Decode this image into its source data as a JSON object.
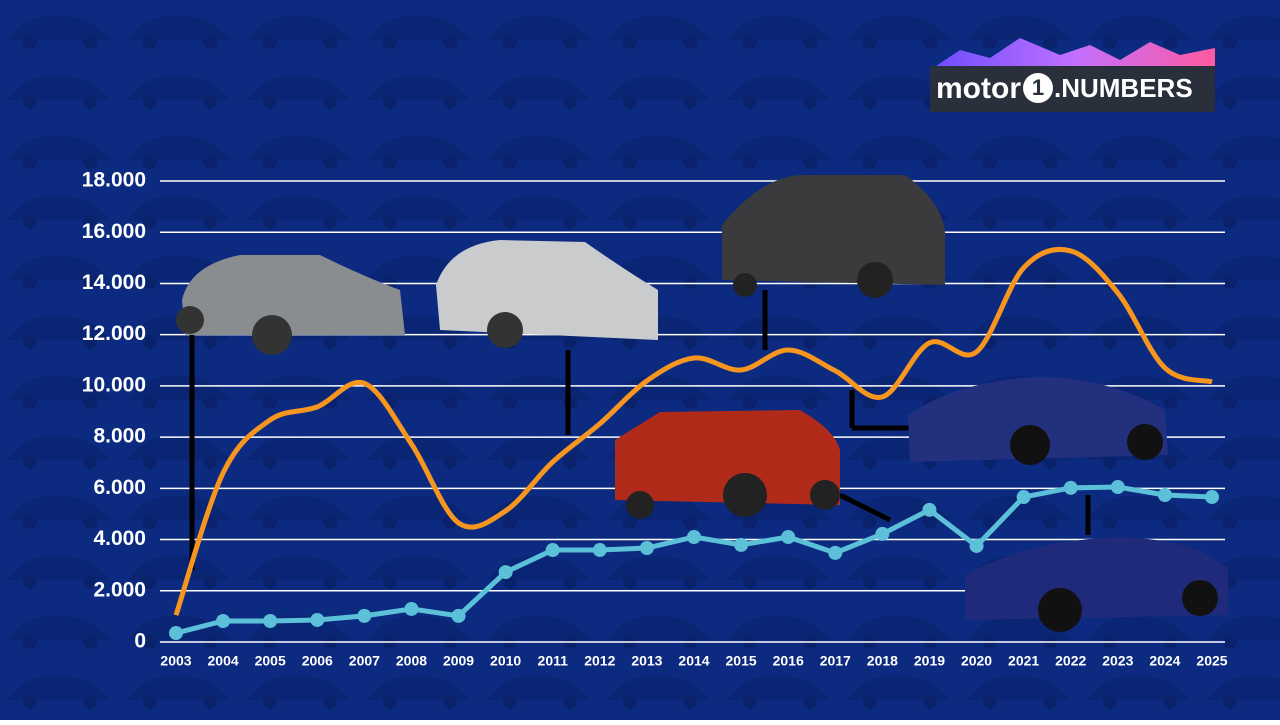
{
  "logo": {
    "brand": "motor",
    "mark": "1",
    "product": ".NUMBERS"
  },
  "chart_data": {
    "type": "line",
    "x": [
      2003,
      2004,
      2005,
      2006,
      2007,
      2008,
      2009,
      2010,
      2011,
      2012,
      2013,
      2014,
      2015,
      2016,
      2017,
      2018,
      2019,
      2020,
      2021,
      2022,
      2023,
      2024,
      2025
    ],
    "xlim": [
      2003,
      2025
    ],
    "xticks": [
      2003,
      2004,
      2005,
      2006,
      2007,
      2008,
      2009,
      2010,
      2011,
      2012,
      2013,
      2014,
      2015,
      2016,
      2017,
      2018,
      2019,
      2020,
      2021,
      2022,
      2023,
      2024,
      2025
    ],
    "ylim": [
      0,
      18000
    ],
    "yticks": [
      0,
      {
        "value": 2000,
        "label": "2.000"
      },
      {
        "value": 4000,
        "label": "4.000"
      },
      {
        "value": 6000,
        "label": "6.000"
      },
      {
        "value": 8000,
        "label": "8.000"
      },
      {
        "value": 10000,
        "label": "10.000"
      },
      {
        "value": 12000,
        "label": "12.000"
      },
      {
        "value": 14000,
        "label": "14.000"
      },
      {
        "value": 16000,
        "label": "16.000"
      },
      {
        "value": 18000,
        "label": "18.000"
      }
    ],
    "grid": true,
    "series": [
      {
        "color": "#f7961e",
        "smooth": true,
        "markers": false,
        "values": [
          1050,
          6600,
          8670,
          9180,
          10100,
          7730,
          4650,
          5120,
          7030,
          8520,
          10200,
          11090,
          10620,
          11400,
          10590,
          9570,
          11680,
          11330,
          14610,
          15270,
          13630,
          10700,
          10160
        ]
      },
      {
        "color": "#5bc0d8",
        "smooth": false,
        "markers": true,
        "values": [
          350,
          820,
          820,
          860,
          1020,
          1290,
          1020,
          2730,
          3590,
          3590,
          3670,
          4100,
          3790,
          4100,
          3480,
          4220,
          5160,
          3750,
          5660,
          6020,
          6050,
          5740,
          5660
        ]
      }
    ]
  }
}
